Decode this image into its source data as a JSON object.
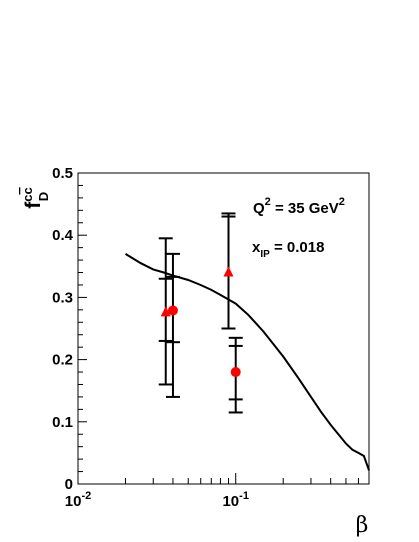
{
  "chart_data": {
    "type": "scatter",
    "x_scale": "log",
    "xlim": [
      0.01,
      0.7
    ],
    "ylim": [
      0,
      0.5
    ],
    "xlabel": "β",
    "ylabel": {
      "base": "f",
      "sub": "D",
      "sup": "c",
      "sup_bar": "c"
    },
    "x_ticks": [
      {
        "value": 0.01,
        "base": "10",
        "exp": "-2"
      },
      {
        "value": 0.1,
        "base": "10",
        "exp": "-1"
      }
    ],
    "y_ticks": [
      {
        "value": 0,
        "label": "0"
      },
      {
        "value": 0.1,
        "label": "0.1"
      },
      {
        "value": 0.2,
        "label": "0.2"
      },
      {
        "value": 0.3,
        "label": "0.3"
      },
      {
        "value": 0.4,
        "label": "0.4"
      },
      {
        "value": 0.5,
        "label": "0.5"
      }
    ],
    "annotations": {
      "q2": {
        "lhs": "Q",
        "lhs_sup": "2",
        "mid": " = 35 GeV",
        "unit_sup": "2"
      },
      "xip": {
        "lhs": "x",
        "lhs_sub": "IP",
        "mid": " = 0.018"
      }
    },
    "series": [
      {
        "marker": "triangle",
        "color": "#ff0000",
        "points": [
          {
            "x": 0.036,
            "y": 0.276,
            "stat": [
              0.23,
              0.33
            ],
            "tot": [
              0.16,
              0.395
            ]
          },
          {
            "x": 0.09,
            "y": 0.34,
            "stat": [
              0.25,
              0.43
            ],
            "tot": [
              0.25,
              0.435
            ]
          }
        ]
      },
      {
        "marker": "circle",
        "color": "#ff0000",
        "points": [
          {
            "x": 0.04,
            "y": 0.279,
            "stat": [
              0.228,
              0.333
            ],
            "tot": [
              0.14,
              0.37
            ]
          },
          {
            "x": 0.1,
            "y": 0.18,
            "stat": [
              0.136,
              0.222
            ],
            "tot": [
              0.115,
              0.235
            ]
          }
        ]
      }
    ],
    "curve": {
      "color": "#000000",
      "points": [
        [
          0.02,
          0.37
        ],
        [
          0.025,
          0.355
        ],
        [
          0.03,
          0.345
        ],
        [
          0.035,
          0.34
        ],
        [
          0.04,
          0.335
        ],
        [
          0.05,
          0.328
        ],
        [
          0.06,
          0.32
        ],
        [
          0.07,
          0.312
        ],
        [
          0.08,
          0.304
        ],
        [
          0.1,
          0.29
        ],
        [
          0.12,
          0.272
        ],
        [
          0.15,
          0.245
        ],
        [
          0.2,
          0.205
        ],
        [
          0.25,
          0.17
        ],
        [
          0.3,
          0.14
        ],
        [
          0.35,
          0.115
        ],
        [
          0.4,
          0.095
        ],
        [
          0.5,
          0.065
        ],
        [
          0.55,
          0.055
        ],
        [
          0.6,
          0.05
        ],
        [
          0.65,
          0.045
        ],
        [
          0.7,
          0.022
        ]
      ]
    }
  }
}
